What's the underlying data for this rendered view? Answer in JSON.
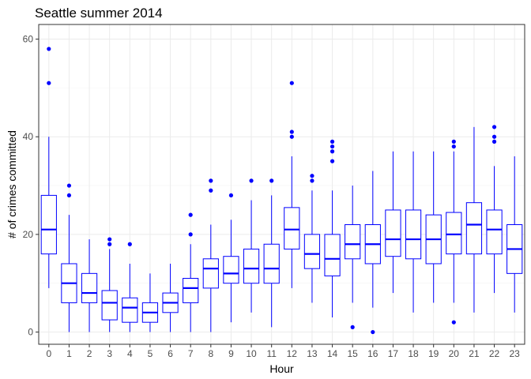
{
  "chart_data": {
    "type": "boxplot",
    "title": "Seattle summer 2014",
    "xlabel": "Hour",
    "ylabel": "# of crimes committed",
    "categories": [
      "0",
      "1",
      "2",
      "3",
      "4",
      "5",
      "6",
      "7",
      "8",
      "9",
      "10",
      "11",
      "12",
      "13",
      "14",
      "15",
      "16",
      "17",
      "18",
      "19",
      "20",
      "21",
      "22",
      "23"
    ],
    "ylim": [
      -2.5,
      63
    ],
    "yticks": [
      0,
      20,
      40,
      60
    ],
    "grid": true,
    "colors": {
      "box": "#0000ff",
      "median": "#0000ff",
      "outlier": "#0000ff"
    },
    "boxes": [
      {
        "hour": "0",
        "whisker_low": 9,
        "q1": 16,
        "median": 21,
        "q3": 28,
        "whisker_high": 40,
        "outliers": [
          51,
          58
        ]
      },
      {
        "hour": "1",
        "whisker_low": 0,
        "q1": 6,
        "median": 10,
        "q3": 14,
        "whisker_high": 24,
        "outliers": [
          28,
          30
        ]
      },
      {
        "hour": "2",
        "whisker_low": 0,
        "q1": 6,
        "median": 8,
        "q3": 12,
        "whisker_high": 19,
        "outliers": []
      },
      {
        "hour": "3",
        "whisker_low": 0,
        "q1": 2.5,
        "median": 6,
        "q3": 8.5,
        "whisker_high": 17,
        "outliers": [
          18,
          19
        ]
      },
      {
        "hour": "4",
        "whisker_low": 0,
        "q1": 2,
        "median": 5,
        "q3": 7,
        "whisker_high": 14,
        "outliers": [
          18
        ]
      },
      {
        "hour": "5",
        "whisker_low": 0,
        "q1": 2,
        "median": 4,
        "q3": 6,
        "whisker_high": 12,
        "outliers": []
      },
      {
        "hour": "6",
        "whisker_low": 0,
        "q1": 4,
        "median": 6,
        "q3": 8,
        "whisker_high": 14,
        "outliers": []
      },
      {
        "hour": "7",
        "whisker_low": 0,
        "q1": 6,
        "median": 9,
        "q3": 11,
        "whisker_high": 18,
        "outliers": [
          20,
          24
        ]
      },
      {
        "hour": "8",
        "whisker_low": 0,
        "q1": 9,
        "median": 13,
        "q3": 15,
        "whisker_high": 22,
        "outliers": [
          29,
          31
        ]
      },
      {
        "hour": "9",
        "whisker_low": 2,
        "q1": 10,
        "median": 12,
        "q3": 15.5,
        "whisker_high": 23,
        "outliers": [
          28
        ]
      },
      {
        "hour": "10",
        "whisker_low": 4,
        "q1": 10,
        "median": 13,
        "q3": 17,
        "whisker_high": 27,
        "outliers": [
          31
        ]
      },
      {
        "hour": "11",
        "whisker_low": 1,
        "q1": 10,
        "median": 13,
        "q3": 18,
        "whisker_high": 28,
        "outliers": [
          31
        ]
      },
      {
        "hour": "12",
        "whisker_low": 9,
        "q1": 17,
        "median": 21,
        "q3": 25.5,
        "whisker_high": 36,
        "outliers": [
          40,
          41,
          51
        ]
      },
      {
        "hour": "13",
        "whisker_low": 6,
        "q1": 13,
        "median": 16,
        "q3": 20,
        "whisker_high": 29,
        "outliers": [
          31,
          32
        ]
      },
      {
        "hour": "14",
        "whisker_low": 3,
        "q1": 11.5,
        "median": 15,
        "q3": 20,
        "whisker_high": 29,
        "outliers": [
          35,
          37,
          38,
          39
        ]
      },
      {
        "hour": "15",
        "whisker_low": 6,
        "q1": 15,
        "median": 18,
        "q3": 22,
        "whisker_high": 30,
        "outliers": [
          1
        ]
      },
      {
        "hour": "16",
        "whisker_low": 5,
        "q1": 14,
        "median": 18,
        "q3": 22,
        "whisker_high": 33,
        "outliers": [
          0
        ]
      },
      {
        "hour": "17",
        "whisker_low": 8,
        "q1": 15.5,
        "median": 19,
        "q3": 25,
        "whisker_high": 37,
        "outliers": []
      },
      {
        "hour": "18",
        "whisker_low": 4,
        "q1": 15,
        "median": 19,
        "q3": 25,
        "whisker_high": 37,
        "outliers": []
      },
      {
        "hour": "19",
        "whisker_low": 6,
        "q1": 14,
        "median": 19,
        "q3": 24,
        "whisker_high": 37,
        "outliers": []
      },
      {
        "hour": "20",
        "whisker_low": 6,
        "q1": 16,
        "median": 20,
        "q3": 24.5,
        "whisker_high": 37,
        "outliers": [
          2,
          38,
          39
        ]
      },
      {
        "hour": "21",
        "whisker_low": 4,
        "q1": 16,
        "median": 22,
        "q3": 26.5,
        "whisker_high": 42,
        "outliers": []
      },
      {
        "hour": "22",
        "whisker_low": 8,
        "q1": 16,
        "median": 21,
        "q3": 25,
        "whisker_high": 34,
        "outliers": [
          39,
          40,
          42
        ]
      },
      {
        "hour": "23",
        "whisker_low": 4,
        "q1": 12,
        "median": 17,
        "q3": 22,
        "whisker_high": 36,
        "outliers": []
      }
    ]
  }
}
